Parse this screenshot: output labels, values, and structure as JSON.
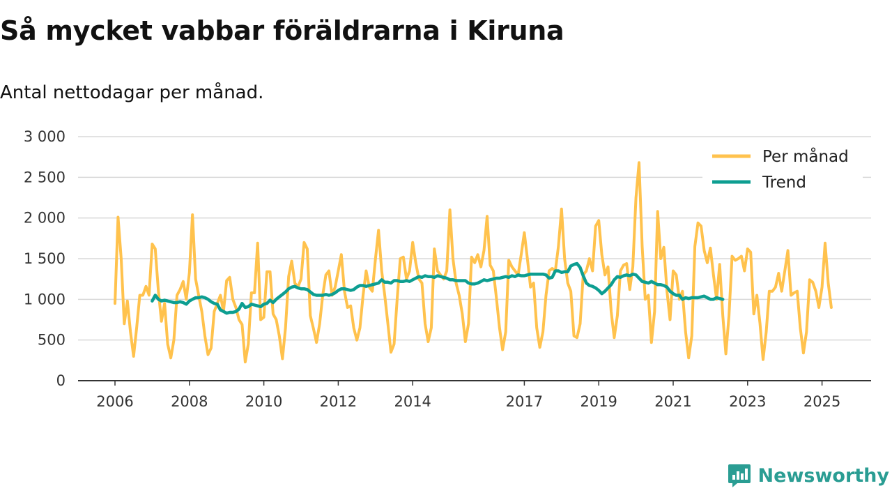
{
  "header": {
    "title": "Så mycket vabbar föräldrarna i Kiruna",
    "subtitle": "Antal nettodagar per månad."
  },
  "brand": {
    "name": "Newsworthy",
    "color": "#2a9d93"
  },
  "colors": {
    "monthly": "#ffc24d",
    "trend": "#0d9e91",
    "grid": "#d9d9d9",
    "axis": "#333333"
  },
  "chart_data": {
    "type": "line",
    "title": "Så mycket vabbar föräldrarna i Kiruna",
    "subtitle": "Antal nettodagar per månad.",
    "xlabel": "",
    "ylabel": "",
    "ylim": [
      0,
      3000
    ],
    "xlim": [
      2006.0,
      2025.5
    ],
    "y_ticks": [
      0,
      500,
      1000,
      1500,
      2000,
      2500,
      3000
    ],
    "y_tick_labels": [
      "0",
      "500",
      "1 000",
      "1 500",
      "2 000",
      "2 500",
      "3 000"
    ],
    "x_ticks": [
      2006,
      2008,
      2010,
      2012,
      2014,
      2017,
      2019,
      2021,
      2023,
      2025
    ],
    "x_tick_labels": [
      "2006",
      "2008",
      "2010",
      "2012",
      "2014",
      "2017",
      "2019",
      "2021",
      "2023",
      "2025"
    ],
    "grid": "horizontal",
    "legend_position": "top-right",
    "start": 2006.0,
    "step": 0.08333,
    "series": [
      {
        "name": "Per månad",
        "color": "#ffc24d",
        "values": [
          950,
          2010,
          1500,
          700,
          980,
          600,
          300,
          650,
          1050,
          1050,
          1160,
          1050,
          1680,
          1620,
          1100,
          730,
          950,
          450,
          280,
          500,
          1050,
          1120,
          1220,
          1000,
          1330,
          2040,
          1250,
          1050,
          850,
          550,
          320,
          400,
          850,
          950,
          1050,
          850,
          1230,
          1270,
          1000,
          900,
          750,
          690,
          230,
          450,
          1080,
          1080,
          1690,
          750,
          780,
          1340,
          1340,
          820,
          750,
          550,
          270,
          650,
          1280,
          1470,
          1200,
          1150,
          1250,
          1700,
          1620,
          800,
          640,
          470,
          700,
          1050,
          1300,
          1350,
          1050,
          1150,
          1350,
          1550,
          1100,
          900,
          920,
          650,
          500,
          650,
          1050,
          1350,
          1150,
          1100,
          1500,
          1850,
          1350,
          1050,
          700,
          350,
          450,
          1000,
          1500,
          1520,
          1250,
          1350,
          1700,
          1450,
          1250,
          1200,
          700,
          480,
          650,
          1620,
          1350,
          1300,
          1250,
          1350,
          2100,
          1500,
          1200,
          1050,
          820,
          480,
          700,
          1520,
          1450,
          1550,
          1400,
          1600,
          2020,
          1420,
          1350,
          1020,
          650,
          380,
          600,
          1480,
          1400,
          1350,
          1300,
          1550,
          1820,
          1500,
          1150,
          1200,
          650,
          410,
          600,
          1050,
          1350,
          1380,
          1350,
          1650,
          2110,
          1500,
          1200,
          1100,
          550,
          530,
          700,
          1300,
          1350,
          1500,
          1350,
          1900,
          1970,
          1550,
          1300,
          1400,
          850,
          530,
          800,
          1350,
          1420,
          1440,
          1120,
          1400,
          2250,
          2680,
          1650,
          1000,
          1050,
          470,
          850,
          2080,
          1500,
          1640,
          1100,
          750,
          1350,
          1300,
          1000,
          1100,
          600,
          280,
          550,
          1650,
          1940,
          1900,
          1600,
          1450,
          1630,
          1300,
          1000,
          1430,
          800,
          330,
          800,
          1530,
          1480,
          1500,
          1530,
          1350,
          1620,
          1580,
          820,
          1050,
          700,
          260,
          600,
          1100,
          1100,
          1150,
          1320,
          1100,
          1350,
          1600,
          1050,
          1080,
          1100,
          650,
          340,
          600,
          1240,
          1210,
          1100,
          900,
          1150,
          1690,
          1200,
          900
        ]
      },
      {
        "name": "Trend",
        "color": "#0d9e91",
        "start_index": 12,
        "values": [
          980,
          1050,
          1000,
          980,
          990,
          980,
          970,
          960,
          960,
          970,
          960,
          940,
          980,
          1000,
          1020,
          1020,
          1030,
          1020,
          1000,
          970,
          950,
          940,
          870,
          850,
          830,
          840,
          840,
          850,
          880,
          950,
          900,
          910,
          940,
          930,
          920,
          910,
          940,
          950,
          990,
          960,
          1000,
          1030,
          1060,
          1090,
          1130,
          1150,
          1160,
          1140,
          1130,
          1130,
          1120,
          1090,
          1060,
          1050,
          1050,
          1050,
          1060,
          1050,
          1060,
          1080,
          1110,
          1130,
          1130,
          1120,
          1110,
          1120,
          1150,
          1170,
          1170,
          1160,
          1170,
          1180,
          1190,
          1200,
          1240,
          1210,
          1210,
          1200,
          1230,
          1230,
          1220,
          1220,
          1230,
          1220,
          1240,
          1260,
          1280,
          1270,
          1290,
          1280,
          1280,
          1270,
          1290,
          1280,
          1270,
          1260,
          1240,
          1240,
          1230,
          1230,
          1230,
          1230,
          1200,
          1190,
          1190,
          1200,
          1220,
          1240,
          1230,
          1240,
          1250,
          1260,
          1260,
          1270,
          1280,
          1270,
          1290,
          1280,
          1300,
          1290,
          1290,
          1300,
          1310,
          1310,
          1310,
          1310,
          1310,
          1300,
          1260,
          1270,
          1350,
          1350,
          1330,
          1340,
          1340,
          1410,
          1430,
          1440,
          1390,
          1290,
          1200,
          1170,
          1160,
          1140,
          1110,
          1070,
          1100,
          1140,
          1180,
          1240,
          1280,
          1270,
          1290,
          1300,
          1290,
          1310,
          1300,
          1260,
          1220,
          1210,
          1200,
          1220,
          1200,
          1180,
          1180,
          1170,
          1150,
          1100,
          1070,
          1050,
          1050,
          1000,
          1020,
          1010,
          1020,
          1020,
          1020,
          1030,
          1040,
          1020,
          1000,
          1000,
          1020,
          1010,
          1000
        ]
      }
    ]
  }
}
